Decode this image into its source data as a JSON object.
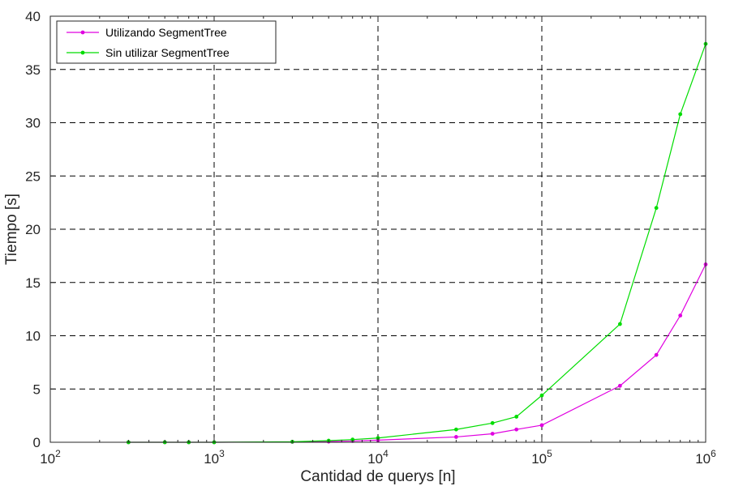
{
  "chart_data": {
    "type": "line",
    "title": "",
    "xlabel": "Cantidad de querys [n]",
    "ylabel": "Tiempo [s]",
    "xscale": "log",
    "xlim": [
      100,
      1000000
    ],
    "ylim": [
      0,
      40
    ],
    "xticks": [
      {
        "base": "10",
        "exp": "2",
        "value": 100
      },
      {
        "base": "10",
        "exp": "3",
        "value": 1000
      },
      {
        "base": "10",
        "exp": "4",
        "value": 10000
      },
      {
        "base": "10",
        "exp": "5",
        "value": 100000
      },
      {
        "base": "10",
        "exp": "6",
        "value": 1000000
      }
    ],
    "yticks": [
      "0",
      "5",
      "10",
      "15",
      "20",
      "25",
      "30",
      "35",
      "40"
    ],
    "grid": true,
    "grid_style": "dashed",
    "legend_position": "top-left",
    "series": [
      {
        "name": "Utilizando SegmentTree",
        "color": "#e000e0",
        "x": [
          300,
          500,
          700,
          1000,
          3000,
          5000,
          7000,
          10000,
          30000,
          50000,
          70000,
          100000,
          300000,
          500000,
          700000,
          1000000
        ],
        "y": [
          0.0,
          0.0,
          0.0,
          0.0,
          0.03,
          0.06,
          0.12,
          0.2,
          0.5,
          0.8,
          1.2,
          1.6,
          5.3,
          8.2,
          11.9,
          16.7
        ]
      },
      {
        "name": "Sin utilizar SegmentTree",
        "color": "#00dd00",
        "x": [
          300,
          500,
          700,
          1000,
          3000,
          5000,
          7000,
          10000,
          30000,
          50000,
          70000,
          100000,
          300000,
          500000,
          700000,
          1000000
        ],
        "y": [
          0.0,
          0.0,
          0.0,
          0.0,
          0.05,
          0.15,
          0.25,
          0.4,
          1.2,
          1.8,
          2.4,
          4.4,
          11.1,
          22.0,
          30.8,
          37.4
        ]
      }
    ]
  }
}
